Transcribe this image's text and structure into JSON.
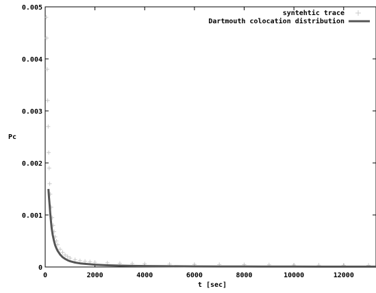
{
  "chart_data": {
    "type": "scatter",
    "title": "",
    "xlabel": "t [sec]",
    "ylabel": "Pc",
    "xlim": [
      0,
      13300
    ],
    "ylim": [
      0,
      0.005
    ],
    "xticks": [
      0,
      2000,
      4000,
      6000,
      8000,
      10000,
      12000
    ],
    "yticks": [
      0,
      0.001,
      0.002,
      0.003,
      0.004,
      0.005
    ],
    "x_tick_labels": [
      "0",
      "2000",
      "4000",
      "6000",
      "8000",
      "10000",
      "12000"
    ],
    "y_tick_labels": [
      "0",
      "0.001",
      "0.002",
      "0.003",
      "0.004",
      "0.005"
    ],
    "grid": false,
    "legend_position": "top-right",
    "series": [
      {
        "name": "syntehtic trace",
        "kind": "scatter",
        "marker": "plus",
        "color": "#c8c8c8",
        "x": [
          40,
          60,
          80,
          100,
          120,
          140,
          160,
          180,
          200,
          240,
          280,
          320,
          360,
          400,
          450,
          500,
          600,
          700,
          800,
          900,
          1000,
          1200,
          1400,
          1600,
          1800,
          2000,
          2500,
          3000,
          3500,
          4000,
          5000,
          6000,
          7000,
          8000,
          9000,
          10000,
          11000,
          12000,
          13000
        ],
        "y": [
          0.0048,
          0.0044,
          0.0038,
          0.0032,
          0.0027,
          0.0022,
          0.0019,
          0.0016,
          0.0014,
          0.00115,
          0.00095,
          0.0008,
          0.00068,
          0.00058,
          0.0005,
          0.00043,
          0.00034,
          0.00028,
          0.00023,
          0.0002,
          0.00017,
          0.00014,
          0.00012,
          0.00011,
          0.0001,
          9e-05,
          8e-05,
          7e-05,
          6.5e-05,
          6e-05,
          5.5e-05,
          5e-05,
          4.8e-05,
          4.5e-05,
          4.3e-05,
          4e-05,
          3.8e-05,
          3.6e-05,
          3.5e-05
        ]
      },
      {
        "name": "Dartmouth colocation distribution",
        "kind": "line",
        "color": "#555555",
        "x": [
          130,
          150,
          175,
          200,
          230,
          260,
          300,
          350,
          400,
          450,
          500,
          600,
          700,
          800,
          900,
          1000,
          1200,
          1400,
          1600,
          1800,
          2000,
          2500,
          3000,
          3500,
          4000,
          5000,
          6000,
          7000,
          8000,
          9000,
          10000,
          11000,
          12000,
          13300
        ],
        "y": [
          0.0015,
          0.00136,
          0.0012,
          0.00104,
          0.00088,
          0.00075,
          0.00062,
          0.00051,
          0.00042,
          0.00036,
          0.00031,
          0.00024,
          0.00019,
          0.000155,
          0.00013,
          0.00011,
          8.5e-05,
          7e-05,
          6e-05,
          5.2e-05,
          4.5e-05,
          3.3e-05,
          2.6e-05,
          2.1e-05,
          1.8e-05,
          1.4e-05,
          1.2e-05,
          1e-05,
          9e-06,
          8e-06,
          7.5e-06,
          7e-06,
          6.5e-06,
          6e-06
        ]
      }
    ]
  }
}
